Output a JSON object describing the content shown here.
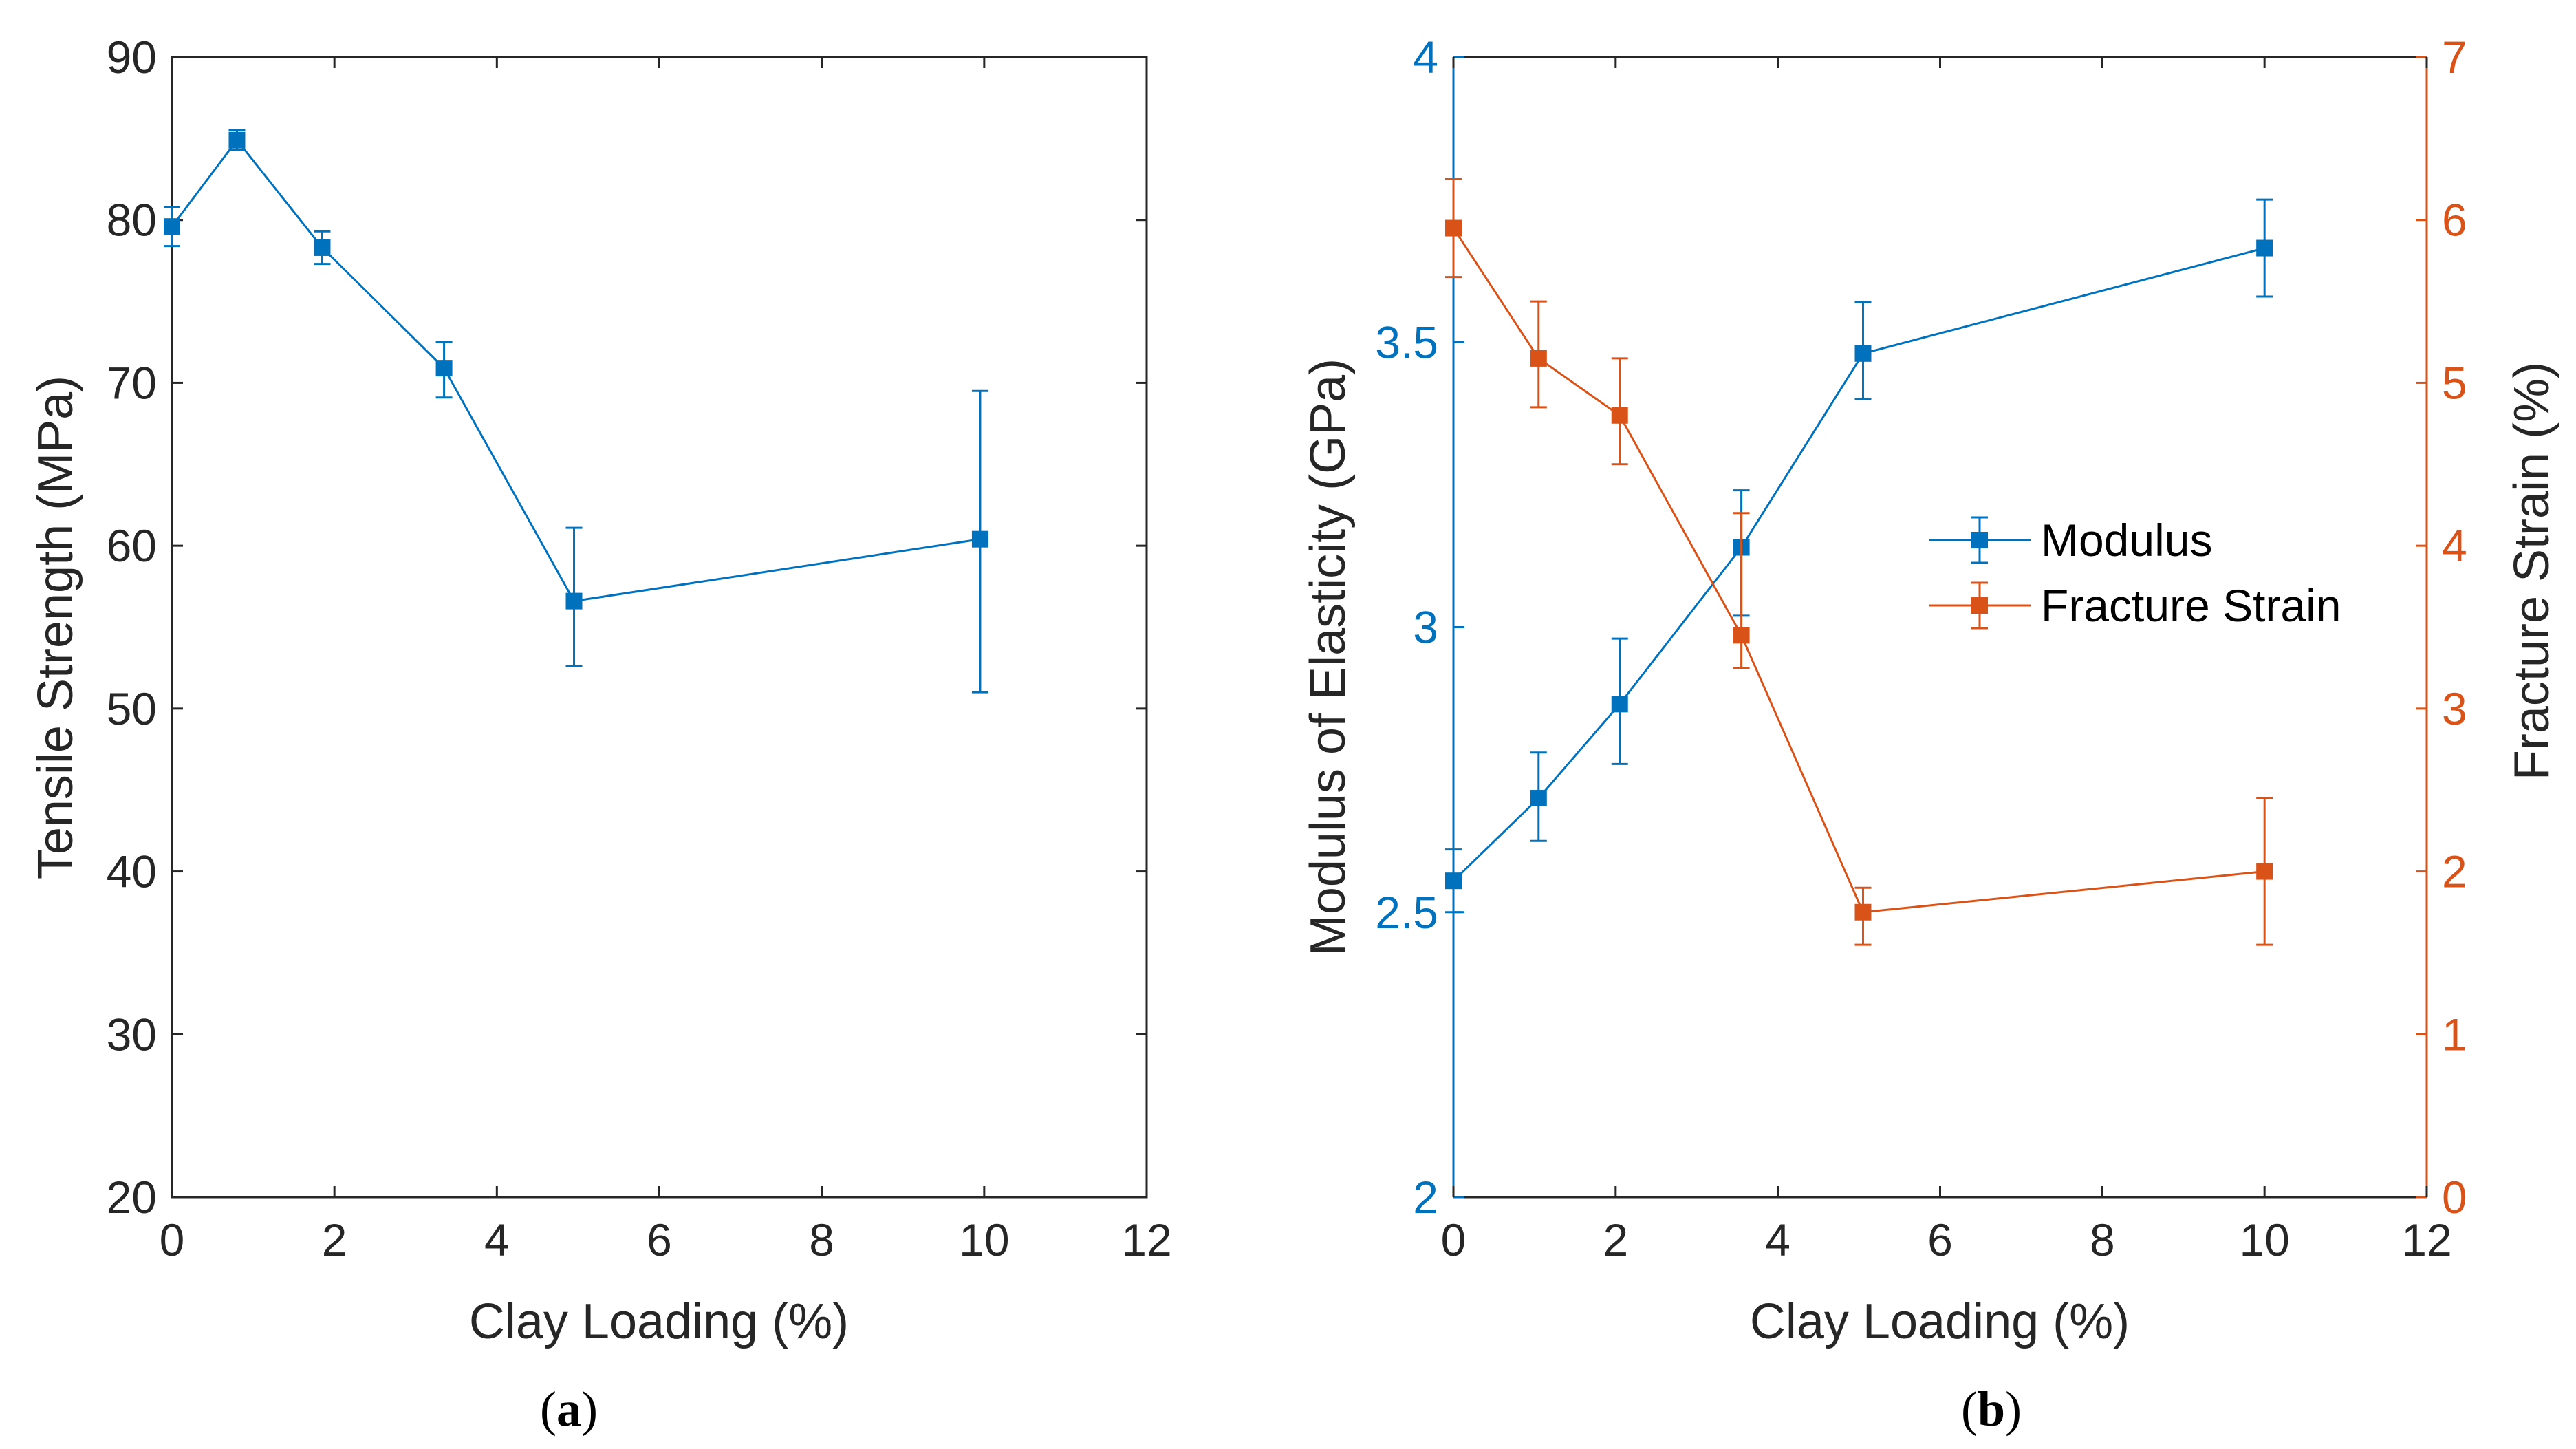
{
  "chart_data": [
    {
      "type": "line",
      "panel": "a",
      "caption_open": "(",
      "caption_letter": "a",
      "caption_close": ")",
      "xlabel": "Clay Loading (%)",
      "ylabel": "Tensile Strength (MPa)",
      "xlim": [
        0,
        12
      ],
      "ylim": [
        20,
        90
      ],
      "xticks": [
        0,
        2,
        4,
        6,
        8,
        10,
        12
      ],
      "yticks": [
        20,
        30,
        40,
        50,
        60,
        70,
        80,
        90
      ],
      "series": [
        {
          "name": "Tensile Strength",
          "color": "#0072BD",
          "x": [
            0,
            0.8,
            1.85,
            3.35,
            4.95,
            9.95
          ],
          "y": [
            79.6,
            84.9,
            78.3,
            70.9,
            56.6,
            60.4
          ],
          "err_low": [
            78.4,
            84.3,
            77.3,
            69.1,
            52.6,
            51.0
          ],
          "err_high": [
            80.8,
            85.5,
            79.3,
            72.5,
            61.1,
            69.5
          ]
        }
      ]
    },
    {
      "type": "line",
      "panel": "b",
      "caption_open": "(",
      "caption_letter": "b",
      "caption_close": ")",
      "xlabel": "Clay Loading (%)",
      "ylabel_left": "Modulus of Elasticity (GPa)",
      "ylabel_right": "Fracture Strain (%)",
      "xlim": [
        0,
        12
      ],
      "ylim_left": [
        2,
        4
      ],
      "ylim_right": [
        0,
        7
      ],
      "xticks": [
        0,
        2,
        4,
        6,
        8,
        10,
        12
      ],
      "yticks_left": [
        2,
        2.5,
        3,
        3.5,
        4
      ],
      "yticks_left_labels": [
        "2",
        "2.5",
        "3",
        "3.5",
        "4"
      ],
      "yticks_right": [
        0,
        1,
        2,
        3,
        4,
        5,
        6,
        7
      ],
      "left_color": "#0072BD",
      "right_color": "#D95319",
      "legend": [
        "Modulus",
        "Fracture Strain"
      ],
      "legend_position": "center-right",
      "series": [
        {
          "name": "Modulus",
          "axis": "left",
          "color": "#0072BD",
          "x": [
            0,
            1.05,
            2.05,
            3.55,
            5.05,
            10.0
          ],
          "y": [
            2.555,
            2.7,
            2.865,
            3.14,
            3.48,
            3.665
          ],
          "err_low": [
            2.5,
            2.625,
            2.76,
            3.02,
            3.4,
            3.58
          ],
          "err_high": [
            2.61,
            2.78,
            2.98,
            3.24,
            3.57,
            3.75
          ]
        },
        {
          "name": "Fracture Strain",
          "axis": "right",
          "color": "#D95319",
          "x": [
            0,
            1.05,
            2.05,
            3.55,
            5.05,
            10.0
          ],
          "y": [
            5.95,
            5.15,
            4.8,
            3.45,
            1.75,
            2.0
          ],
          "err_low": [
            5.65,
            4.85,
            4.5,
            3.25,
            1.55,
            1.55
          ],
          "err_high": [
            6.25,
            5.5,
            5.15,
            4.2,
            1.9,
            2.45
          ]
        }
      ]
    }
  ]
}
